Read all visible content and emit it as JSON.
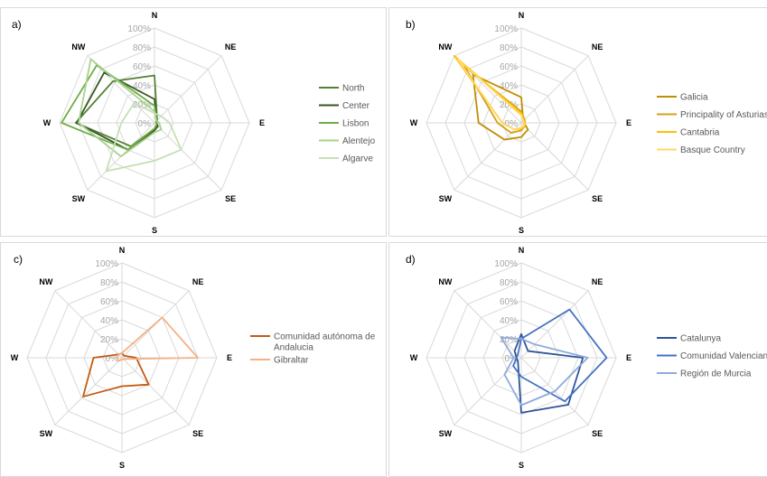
{
  "directions": [
    "N",
    "NE",
    "E",
    "SE",
    "S",
    "SW",
    "W",
    "NW"
  ],
  "ticks": [
    "0%",
    "20%",
    "40%",
    "60%",
    "80%",
    "100%"
  ],
  "grid_color": "#d9d9d9",
  "chart_data": [
    {
      "type": "radar",
      "panel_label": "a)",
      "categories": [
        "N",
        "NE",
        "E",
        "SE",
        "S",
        "SW",
        "W",
        "NW"
      ],
      "rmax": 1.0,
      "grid": true,
      "legend_position": "right",
      "series": [
        {
          "name": "North",
          "color": "#548235",
          "values": [
            0.5,
            0.04,
            0.02,
            0.05,
            0.06,
            0.35,
            0.83,
            0.62
          ]
        },
        {
          "name": "Center",
          "color": "#375623",
          "values": [
            0.25,
            0.03,
            0.02,
            0.05,
            0.08,
            0.4,
            0.82,
            0.75
          ]
        },
        {
          "name": "Lisbon",
          "color": "#70ad47",
          "values": [
            0.18,
            0.03,
            0.02,
            0.03,
            0.06,
            0.4,
            0.98,
            0.86
          ]
        },
        {
          "name": "Alentejo",
          "color": "#a9d18e",
          "values": [
            0.12,
            0.03,
            0.05,
            0.1,
            0.1,
            0.5,
            0.8,
            0.95
          ]
        },
        {
          "name": "Algarve",
          "color": "#c5e0b4",
          "values": [
            0.1,
            0.1,
            0.16,
            0.4,
            0.4,
            0.72,
            0.35,
            0.3
          ]
        }
      ]
    },
    {
      "type": "radar",
      "panel_label": "b)",
      "categories": [
        "N",
        "NE",
        "E",
        "SE",
        "S",
        "SW",
        "W",
        "NW"
      ],
      "rmax": 1.0,
      "grid": true,
      "legend_position": "right",
      "series": [
        {
          "name": "Galicia",
          "color": "#bf8f00",
          "values": [
            0.27,
            0.03,
            0.03,
            0.1,
            0.15,
            0.25,
            0.45,
            0.72
          ]
        },
        {
          "name": "Principality of Asturias",
          "color": "#d4a017",
          "values": [
            0.12,
            0.05,
            0.04,
            0.05,
            0.08,
            0.15,
            0.25,
            0.85
          ]
        },
        {
          "name": "Cantabria",
          "color": "#ffc000",
          "values": [
            0.1,
            0.04,
            0.04,
            0.05,
            0.06,
            0.1,
            0.2,
            1.0
          ]
        },
        {
          "name": "Basque Country",
          "color": "#ffd966",
          "values": [
            0.08,
            0.03,
            0.03,
            0.04,
            0.05,
            0.1,
            0.2,
            0.95
          ]
        }
      ]
    },
    {
      "type": "radar",
      "panel_label": "c)",
      "categories": [
        "N",
        "NE",
        "E",
        "SE",
        "S",
        "SW",
        "W",
        "NW"
      ],
      "rmax": 1.0,
      "grid": true,
      "legend_position": "right",
      "series": [
        {
          "name": "Comunidad autónoma de Andalucia",
          "color": "#c55a11",
          "values": [
            0.05,
            0.03,
            0.15,
            0.4,
            0.3,
            0.58,
            0.3,
            0.05
          ]
        },
        {
          "name": "Gibraltar",
          "color": "#f4b183",
          "values": [
            0.05,
            0.6,
            0.8,
            0.02,
            0.02,
            0.05,
            0.05,
            0.05
          ]
        }
      ]
    },
    {
      "type": "radar",
      "panel_label": "d)",
      "categories": [
        "N",
        "NE",
        "E",
        "SE",
        "S",
        "SW",
        "W",
        "NW"
      ],
      "rmax": 1.0,
      "grid": true,
      "legend_position": "right",
      "series": [
        {
          "name": "Catalunya",
          "color": "#2f5597",
          "values": [
            0.25,
            0.1,
            0.65,
            0.7,
            0.58,
            0.05,
            0.05,
            0.1
          ]
        },
        {
          "name": "Comunidad Valenciana",
          "color": "#4472c4",
          "values": [
            0.2,
            0.72,
            0.9,
            0.65,
            0.2,
            0.12,
            0.05,
            0.05
          ]
        },
        {
          "name": "Región de Murcia",
          "color": "#8faadc",
          "values": [
            0.2,
            0.2,
            0.7,
            0.5,
            0.5,
            0.25,
            0.08,
            0.3
          ]
        }
      ]
    }
  ]
}
